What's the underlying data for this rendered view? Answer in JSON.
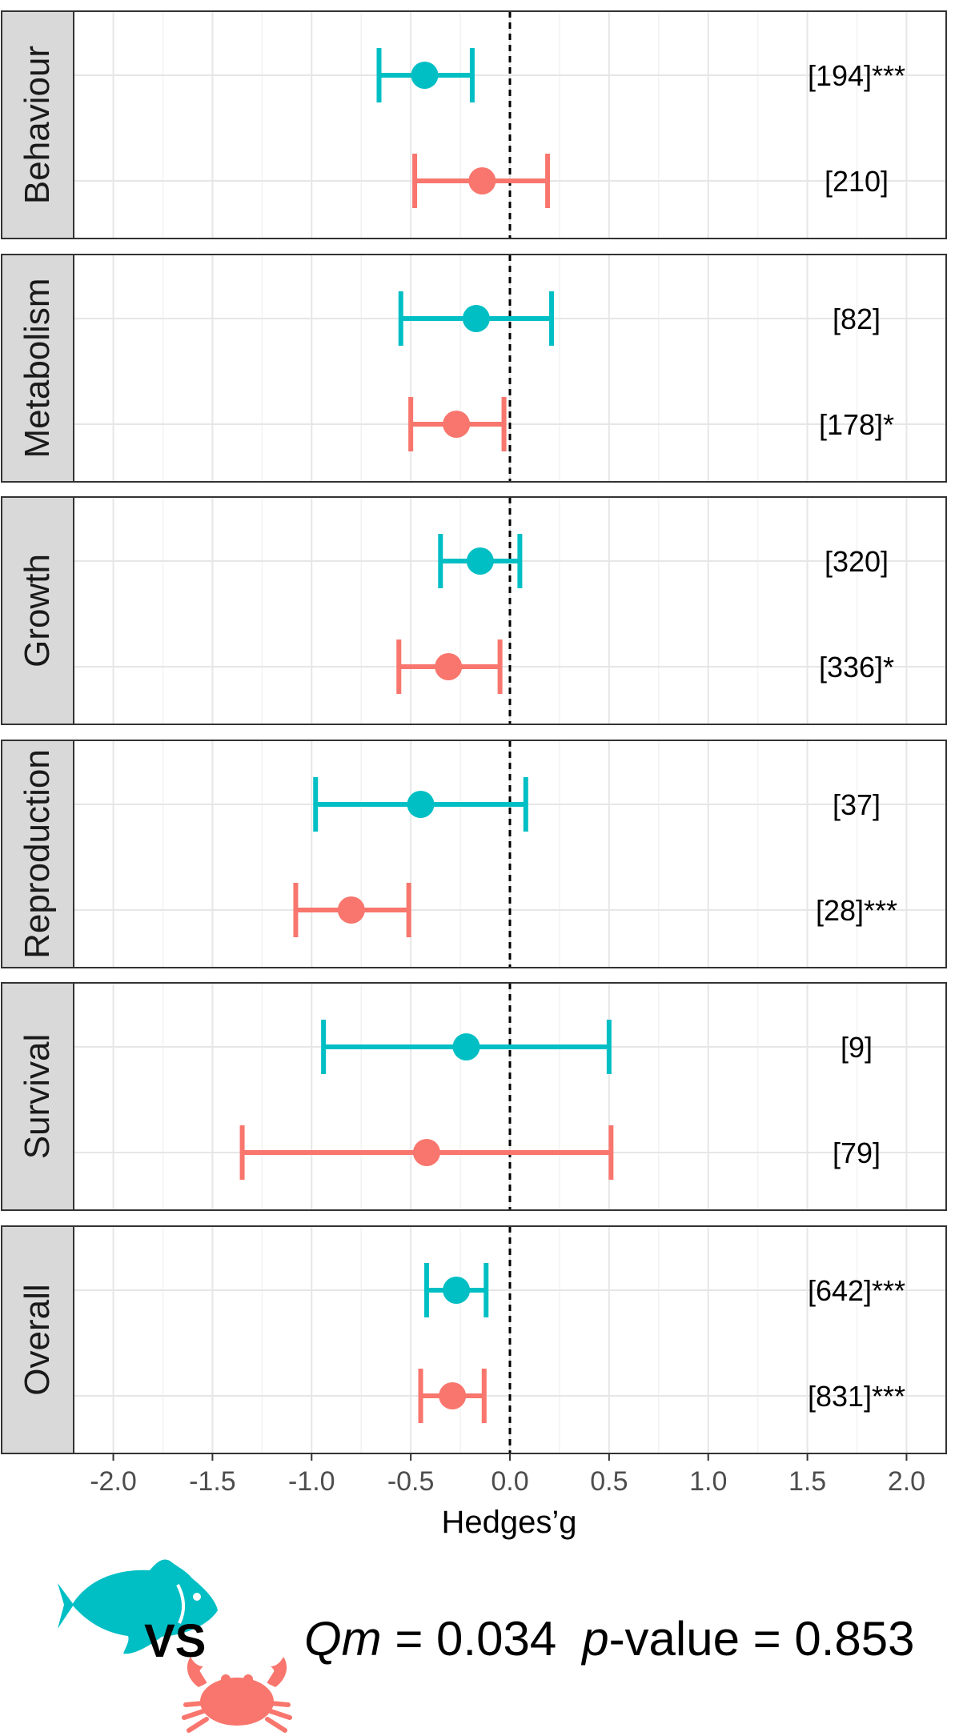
{
  "chart_data": {
    "type": "forest",
    "xlabel": "Hedges’g",
    "xlim": [
      -2.2,
      2.2
    ],
    "xticks": [
      -2.0,
      -1.5,
      -1.0,
      -0.5,
      0.0,
      0.5,
      1.0,
      1.5,
      2.0
    ],
    "xtick_labels": [
      "-2.0",
      "-1.5",
      "-1.0",
      "-0.5",
      "0.0",
      "0.5",
      "1.0",
      "1.5",
      "2.0"
    ],
    "reference_line": 0,
    "series": [
      {
        "name": "Fish",
        "color": "#00BFC4"
      },
      {
        "name": "Crustaceans",
        "color": "#F8766D"
      }
    ],
    "panels": [
      {
        "label": "Behaviour",
        "rows": [
          {
            "series": "Fish",
            "estimate": -0.43,
            "lower": -0.66,
            "upper": -0.19,
            "label": "[194]***"
          },
          {
            "series": "Crustaceans",
            "estimate": -0.14,
            "lower": -0.48,
            "upper": 0.19,
            "label": "[210]"
          }
        ]
      },
      {
        "label": "Metabolism",
        "rows": [
          {
            "series": "Fish",
            "estimate": -0.17,
            "lower": -0.55,
            "upper": 0.21,
            "label": "[82]"
          },
          {
            "series": "Crustaceans",
            "estimate": -0.27,
            "lower": -0.5,
            "upper": -0.03,
            "label": "[178]*"
          }
        ]
      },
      {
        "label": "Growth",
        "rows": [
          {
            "series": "Fish",
            "estimate": -0.15,
            "lower": -0.35,
            "upper": 0.05,
            "label": "[320]"
          },
          {
            "series": "Crustaceans",
            "estimate": -0.31,
            "lower": -0.56,
            "upper": -0.05,
            "label": "[336]*"
          }
        ]
      },
      {
        "label": "Reproduction",
        "rows": [
          {
            "series": "Fish",
            "estimate": -0.45,
            "lower": -0.98,
            "upper": 0.08,
            "label": "[37]"
          },
          {
            "series": "Crustaceans",
            "estimate": -0.8,
            "lower": -1.08,
            "upper": -0.51,
            "label": "[28]***"
          }
        ]
      },
      {
        "label": "Survival",
        "rows": [
          {
            "series": "Fish",
            "estimate": -0.22,
            "lower": -0.94,
            "upper": 0.5,
            "label": "[9]"
          },
          {
            "series": "Crustaceans",
            "estimate": -0.42,
            "lower": -1.35,
            "upper": 0.51,
            "label": "[79]"
          }
        ]
      },
      {
        "label": "Overall",
        "rows": [
          {
            "series": "Fish",
            "estimate": -0.27,
            "lower": -0.42,
            "upper": -0.12,
            "label": "[642]***"
          },
          {
            "series": "Crustaceans",
            "estimate": -0.29,
            "lower": -0.45,
            "upper": -0.13,
            "label": "[831]***"
          }
        ]
      }
    ]
  },
  "footer": {
    "vs_label": "VS",
    "qm_label": "Qm",
    "qm_value": " = 0.034",
    "p_label": "p",
    "p_value": "-value = 0.853"
  },
  "icons": {
    "fish_icon": "fish-icon",
    "crab_icon": "crab-icon",
    "fish_color": "#00BFC4",
    "crab_color": "#F8766D"
  }
}
